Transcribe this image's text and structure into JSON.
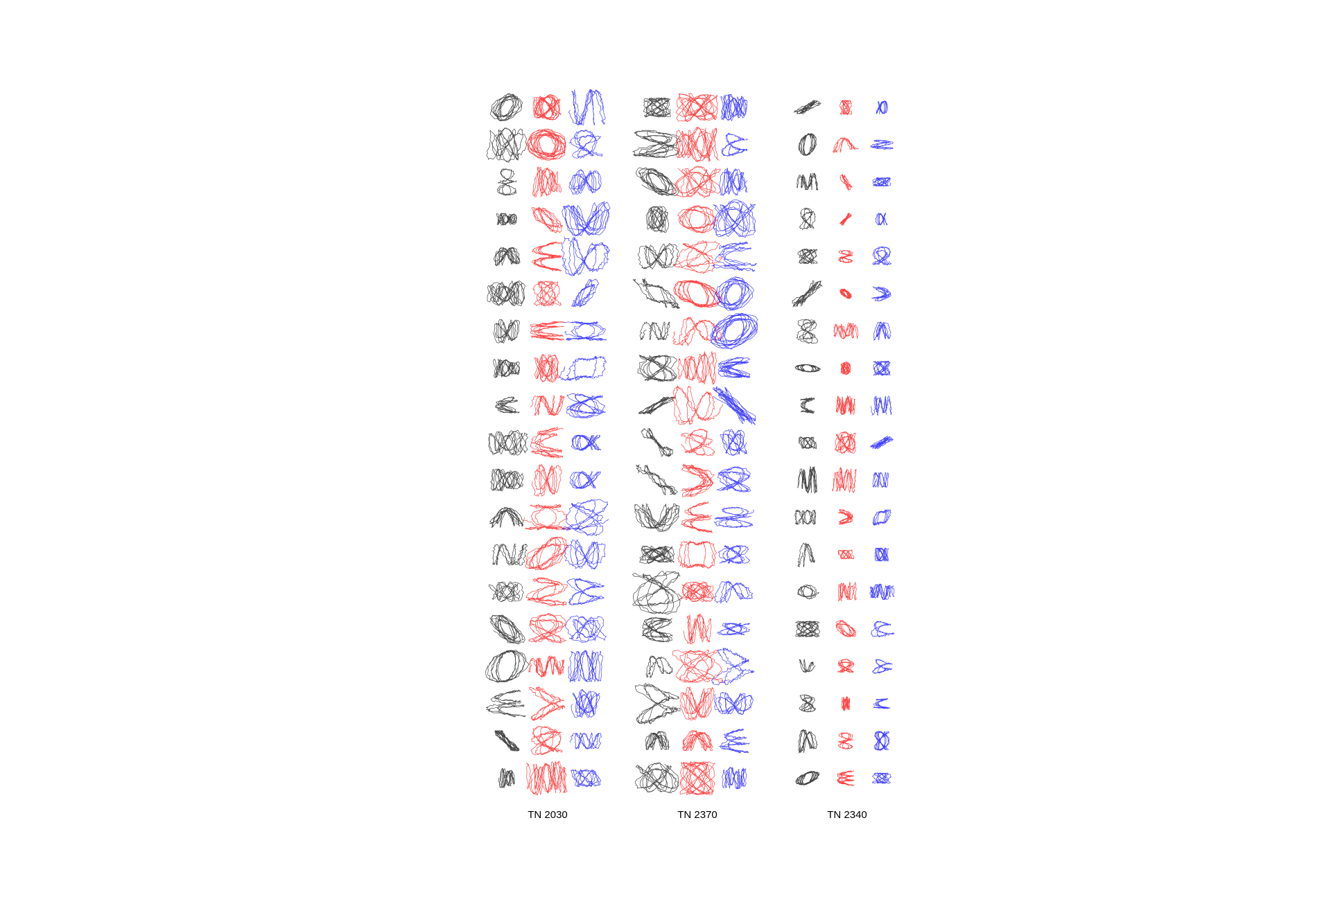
{
  "labels": [
    "TN 2030",
    "TN 2370",
    "TN 2340"
  ]
}
